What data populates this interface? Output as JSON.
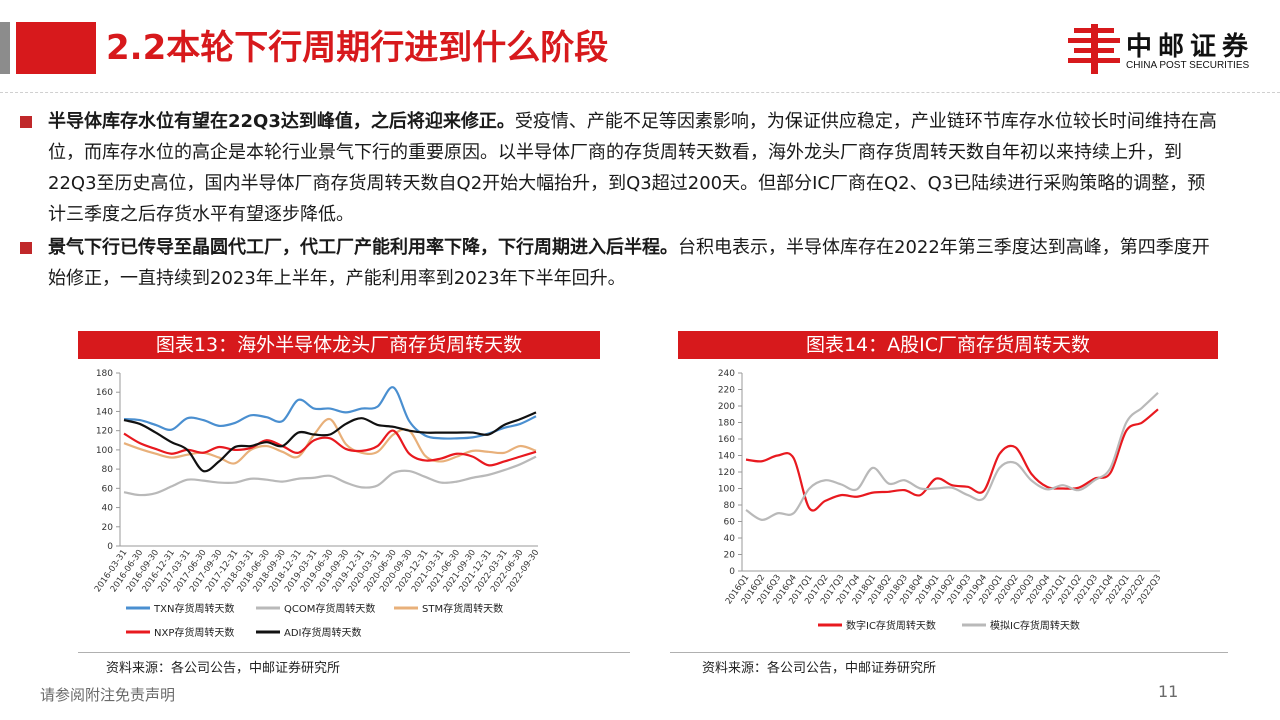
{
  "page_title": "2.2本轮下行周期行进到什么阶段",
  "logo": {
    "cn": "中邮证券",
    "en": "CHINA POST SECURITIES"
  },
  "bullets": [
    {
      "bold": "半导体库存水位有望在22Q3达到峰值，之后将迎来修正。",
      "text": "受疫情、产能不足等因素影响，为保证供应稳定，产业链环节库存水位较长时间维持在高位，而库存水位的高企是本轮行业景气下行的重要原因。以半导体厂商的存货周转天数看，海外龙头厂商存货周转天数自年初以来持续上升，到22Q3至历史高位，国内半导体厂商存货周转天数自Q2开始大幅抬升，到Q3超过200天。但部分IC厂商在Q2、Q3已陆续进行采购策略的调整，预计三季度之后存货水平有望逐步降低。"
    },
    {
      "bold": "景气下行已传导至晶圆代工厂，代工厂产能利用率下降，下行周期进入后半程。",
      "text": "台积电表示，半导体库存在2022年第三季度达到高峰，第四季度开始修正，一直持续到2023年上半年，产能利用率到2023年下半年回升。"
    }
  ],
  "chart1_title": "图表13：海外半导体龙头厂商存货周转天数",
  "chart2_title": "图表14：A股IC厂商存货周转天数",
  "chart1_source": "资料来源：各公司公告，中邮证券研究所",
  "chart2_source": "资料来源：各公司公告，中邮证券研究所",
  "footer_disclaimer": "请参阅附注免责声明",
  "page_number": "11",
  "chart_data": [
    {
      "type": "line",
      "title": "图表13：海外半导体龙头厂商存货周转天数",
      "ylim": [
        0,
        180
      ],
      "yticks": [
        0,
        20,
        40,
        60,
        80,
        100,
        120,
        140,
        160,
        180
      ],
      "legend_position": "bottom",
      "grid": false,
      "categories": [
        "2016-03-31",
        "2016-06-30",
        "2016-09-30",
        "2016-12-31",
        "2017-03-31",
        "2017-06-30",
        "2017-09-30",
        "2017-12-31",
        "2018-03-31",
        "2018-06-30",
        "2018-09-30",
        "2018-12-31",
        "2019-03-31",
        "2019-06-30",
        "2019-09-30",
        "2019-12-31",
        "2020-03-31",
        "2020-06-30",
        "2020-09-30",
        "2020-12-31",
        "2021-03-31",
        "2021-06-30",
        "2021-09-30",
        "2021-12-31",
        "2022-03-31",
        "2022-06-30",
        "2022-09-30"
      ],
      "series": [
        {
          "name": "TXN存货周转天数",
          "color": "#4a8fd0",
          "values": [
            132,
            131,
            126,
            121,
            133,
            131,
            125,
            128,
            136,
            134,
            130,
            152,
            143,
            143,
            139,
            143,
            145,
            165,
            130,
            115,
            112,
            112,
            113,
            117,
            123,
            127,
            135
          ]
        },
        {
          "name": "QCOM存货周转天数",
          "color": "#b9b9b9",
          "values": [
            56,
            53,
            55,
            62,
            69,
            68,
            66,
            66,
            70,
            69,
            67,
            70,
            71,
            73,
            66,
            61,
            63,
            76,
            78,
            72,
            66,
            67,
            71,
            74,
            79,
            85,
            93
          ]
        },
        {
          "name": "STM存货周转天数",
          "color": "#e8b07a",
          "values": [
            107,
            101,
            96,
            92,
            95,
            97,
            92,
            86,
            100,
            104,
            98,
            93,
            116,
            132,
            106,
            97,
            98,
            116,
            120,
            94,
            88,
            93,
            99,
            98,
            97,
            104,
            99
          ]
        },
        {
          "name": "NXP存货周转天数",
          "color": "#e8191f",
          "values": [
            117,
            107,
            101,
            96,
            100,
            97,
            103,
            100,
            102,
            110,
            104,
            97,
            110,
            112,
            101,
            99,
            104,
            120,
            96,
            89,
            91,
            96,
            93,
            84,
            88,
            93,
            98
          ]
        },
        {
          "name": "ADI存货周转天数",
          "color": "#111111",
          "values": [
            131,
            127,
            118,
            108,
            100,
            78,
            88,
            103,
            104,
            108,
            104,
            118,
            116,
            116,
            127,
            133,
            126,
            124,
            120,
            118,
            118,
            118,
            118,
            116,
            126,
            132,
            139
          ]
        }
      ]
    },
    {
      "type": "line",
      "title": "图表14：A股IC厂商存货周转天数",
      "ylim": [
        0,
        240
      ],
      "yticks": [
        0,
        20,
        40,
        60,
        80,
        100,
        120,
        140,
        160,
        180,
        200,
        220,
        240
      ],
      "legend_position": "bottom",
      "grid": false,
      "categories": [
        "2016Q1",
        "2016Q2",
        "2016Q3",
        "2016Q4",
        "2017Q1",
        "2017Q2",
        "2017Q3",
        "2017Q4",
        "2018Q1",
        "2018Q2",
        "2018Q3",
        "2018Q4",
        "2019Q1",
        "2019Q2",
        "2019Q3",
        "2019Q4",
        "2020Q1",
        "2020Q2",
        "2020Q3",
        "2020Q4",
        "2021Q1",
        "2021Q2",
        "2021Q3",
        "2021Q4",
        "2022Q1",
        "2022Q2",
        "2022Q3"
      ],
      "series": [
        {
          "name": "数字IC存货周转天数",
          "color": "#e8191f",
          "values": [
            135,
            133,
            140,
            137,
            76,
            85,
            92,
            90,
            95,
            96,
            98,
            92,
            112,
            104,
            102,
            97,
            142,
            150,
            118,
            102,
            100,
            101,
            112,
            119,
            170,
            180,
            196
          ]
        },
        {
          "name": "模拟IC存货周转天数",
          "color": "#b9b9b9",
          "values": [
            74,
            62,
            70,
            70,
            100,
            110,
            105,
            99,
            125,
            106,
            110,
            100,
            100,
            101,
            92,
            88,
            125,
            131,
            110,
            99,
            104,
            98,
            110,
            125,
            180,
            198,
            216
          ]
        }
      ]
    }
  ]
}
